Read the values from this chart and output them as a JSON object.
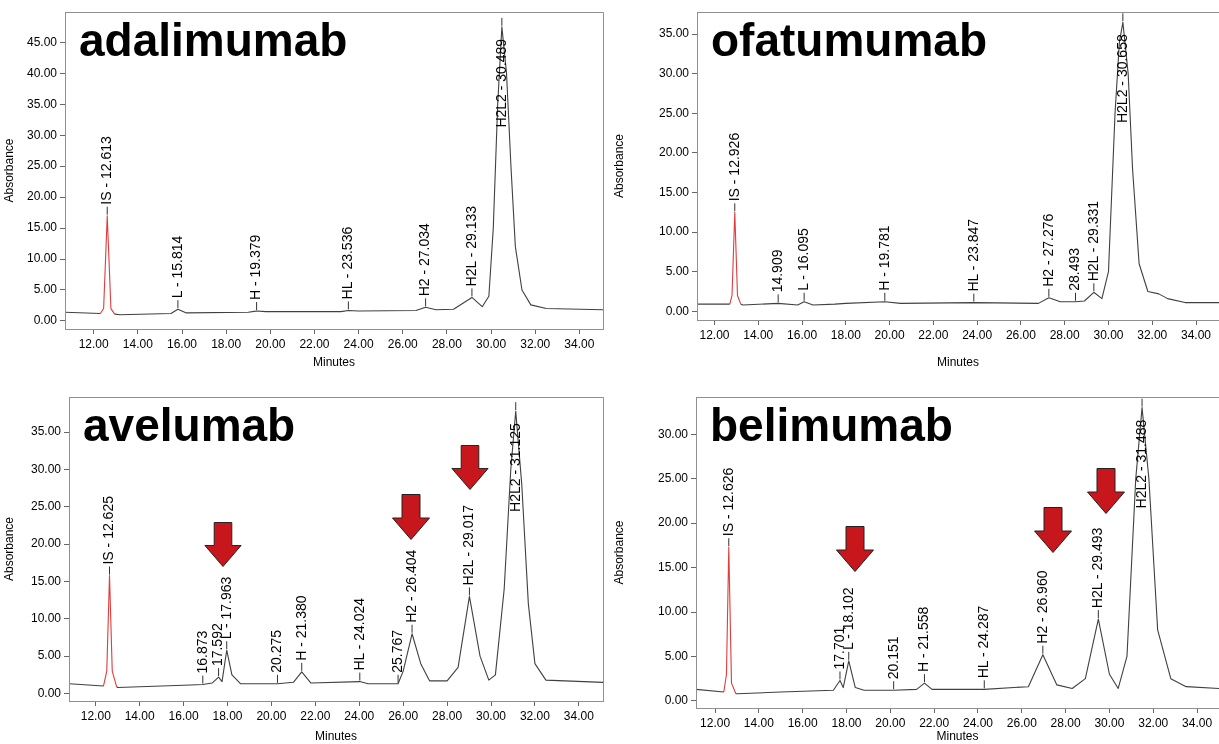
{
  "chart_data": [
    {
      "type": "line",
      "title": "adalimumab",
      "xlabel": "Minutes",
      "ylabel": "Absorbance",
      "legend": false,
      "grid": false,
      "xlim": [
        10.7,
        35.07
      ],
      "ylim": [
        -1.3,
        49.9
      ],
      "xticks": [
        {
          "value": 12,
          "label": "12.00"
        },
        {
          "value": 14,
          "label": "14.00"
        },
        {
          "value": 16,
          "label": "16.00"
        },
        {
          "value": 18,
          "label": "18.00"
        },
        {
          "value": 20,
          "label": "20.00"
        },
        {
          "value": 22,
          "label": "22.00"
        },
        {
          "value": 24,
          "label": "24.00"
        },
        {
          "value": 26,
          "label": "26.00"
        },
        {
          "value": 28,
          "label": "28.00"
        },
        {
          "value": 30,
          "label": "30.00"
        },
        {
          "value": 32,
          "label": "32.00"
        },
        {
          "value": 34,
          "label": "34.00"
        }
      ],
      "yticks": [
        {
          "value": 0,
          "label": "0.00"
        },
        {
          "value": 5,
          "label": "5.00"
        },
        {
          "value": 10,
          "label": "10.00"
        },
        {
          "value": 15,
          "label": "15.00"
        },
        {
          "value": 20,
          "label": "20.00"
        },
        {
          "value": 25,
          "label": "25.00"
        },
        {
          "value": 30,
          "label": "30.00"
        },
        {
          "value": 35,
          "label": "35.00"
        },
        {
          "value": 40,
          "label": "40.00"
        },
        {
          "value": 45,
          "label": "45.00"
        }
      ],
      "series": [
        {
          "type": "line",
          "color": "#404040",
          "x": [
            10.7,
            12.3,
            12.6,
            12.95,
            13.2,
            15.5,
            15.814,
            16.2,
            19.0,
            19.379,
            19.8,
            23.2,
            23.536,
            24.0,
            26.6,
            27.034,
            27.5,
            28.3,
            29.133,
            29.6,
            29.9,
            30.1,
            30.3,
            30.489,
            30.7,
            30.9,
            31.1,
            31.4,
            31.8,
            32.5,
            35.07
          ],
          "values": [
            1.4,
            1.2,
            null,
            1.1,
            1.0,
            1.2,
            1.9,
            1.3,
            1.4,
            1.6,
            1.5,
            1.5,
            1.7,
            1.6,
            1.7,
            2.2,
            1.8,
            1.9,
            3.8,
            2.3,
            4,
            15,
            35,
            47.5,
            40,
            25,
            12,
            5,
            2.6,
            2.0,
            1.8
          ]
        },
        {
          "type": "line",
          "color": "#e03c3c",
          "x": [
            12.3,
            12.45,
            12.613,
            12.78,
            12.95
          ],
          "values": [
            1.2,
            2,
            17,
            2,
            1.1
          ]
        }
      ],
      "annotations": [
        {
          "text": "IS - 12.613",
          "x": 12.613,
          "y": 17
        },
        {
          "text": "L - 15.814",
          "x": 15.814,
          "y": 1.9
        },
        {
          "text": "H - 19.379",
          "x": 19.379,
          "y": 1.6
        },
        {
          "text": "HL - 23.536",
          "x": 23.536,
          "y": 1.7
        },
        {
          "text": "H2 - 27.034",
          "x": 27.034,
          "y": 2.2
        },
        {
          "text": "H2L - 29.133",
          "x": 29.133,
          "y": 3.8
        },
        {
          "text": "H2L2 - 30.489",
          "x": 30.489,
          "y": 47.5
        }
      ]
    },
    {
      "type": "line",
      "title": "ofatumumab",
      "xlabel": "Minutes",
      "ylabel": "Absorbance",
      "legend": false,
      "grid": false,
      "xlim": [
        11.2,
        35.05
      ],
      "ylim": [
        -1.1,
        37.8
      ],
      "xticks": [
        {
          "value": 12,
          "label": "12.00"
        },
        {
          "value": 14,
          "label": "14.00"
        },
        {
          "value": 16,
          "label": "16.00"
        },
        {
          "value": 18,
          "label": "18.00"
        },
        {
          "value": 20,
          "label": "20.00"
        },
        {
          "value": 22,
          "label": "22.00"
        },
        {
          "value": 24,
          "label": "24.00"
        },
        {
          "value": 26,
          "label": "26.00"
        },
        {
          "value": 28,
          "label": "28.00"
        },
        {
          "value": 30,
          "label": "30.00"
        },
        {
          "value": 32,
          "label": "32.00"
        },
        {
          "value": 34,
          "label": "34.00"
        }
      ],
      "yticks": [
        {
          "value": 0,
          "label": "0.00"
        },
        {
          "value": 5,
          "label": "5.00"
        },
        {
          "value": 10,
          "label": "10.00"
        },
        {
          "value": 15,
          "label": "15.00"
        },
        {
          "value": 20,
          "label": "20.00"
        },
        {
          "value": 25,
          "label": "25.00"
        },
        {
          "value": 30,
          "label": "30.00"
        },
        {
          "value": 35,
          "label": "35.00"
        }
      ],
      "series": [
        {
          "type": "line",
          "color": "#404040",
          "x": [
            11.2,
            12.7,
            12.9,
            13.2,
            13.3,
            14.909,
            15.8,
            16.095,
            16.5,
            17.5,
            18.0,
            19.781,
            20.5,
            23.847,
            26.8,
            27.276,
            27.8,
            28.493,
            28.9,
            29.331,
            29.7,
            30.0,
            30.3,
            30.5,
            30.658,
            30.9,
            31.1,
            31.4,
            31.8,
            32.3,
            32.7,
            33.5,
            35.05
          ],
          "values": [
            0.9,
            0.9,
            null,
            0.9,
            0.8,
            1.0,
            0.8,
            1.2,
            0.8,
            0.9,
            1.0,
            1.2,
            1.0,
            1.1,
            1.0,
            1.7,
            1.2,
            1.2,
            1.3,
            2.4,
            1.6,
            5,
            25,
            34,
            36.5,
            30,
            18,
            6,
            2.5,
            2.2,
            1.6,
            1.1,
            1.1
          ]
        },
        {
          "type": "line",
          "color": "#e03c3c",
          "x": [
            12.7,
            12.8,
            12.926,
            13.05,
            13.2
          ],
          "values": [
            0.9,
            2,
            12.5,
            2,
            0.9
          ]
        }
      ],
      "annotations": [
        {
          "text": "IS - 12.926",
          "x": 12.926,
          "y": 12.5
        },
        {
          "text": "14.909",
          "x": 14.909,
          "y": 1.0
        },
        {
          "text": "L - 16.095",
          "x": 16.095,
          "y": 1.2
        },
        {
          "text": "H - 19.781",
          "x": 19.781,
          "y": 1.2
        },
        {
          "text": "HL - 23.847",
          "x": 23.847,
          "y": 1.1
        },
        {
          "text": "H2 - 27.276",
          "x": 27.276,
          "y": 1.7
        },
        {
          "text": "28.493",
          "x": 28.493,
          "y": 1.2
        },
        {
          "text": "H2L - 29.331",
          "x": 29.331,
          "y": 2.4
        },
        {
          "text": "H2L2 - 30.658",
          "x": 30.658,
          "y": 36.5
        }
      ]
    },
    {
      "type": "line",
      "title": "avelumab",
      "xlabel": "Minutes",
      "ylabel": "Absorbance",
      "legend": false,
      "grid": false,
      "xlim": [
        10.78,
        35.1
      ],
      "ylim": [
        -1.0,
        39.7
      ],
      "xticks": [
        {
          "value": 12,
          "label": "12.00"
        },
        {
          "value": 14,
          "label": "14.00"
        },
        {
          "value": 16,
          "label": "16.00"
        },
        {
          "value": 18,
          "label": "18.00"
        },
        {
          "value": 20,
          "label": "20.00"
        },
        {
          "value": 22,
          "label": "22.00"
        },
        {
          "value": 24,
          "label": "24.00"
        },
        {
          "value": 26,
          "label": "26.00"
        },
        {
          "value": 28,
          "label": "28.00"
        },
        {
          "value": 30,
          "label": "30.00"
        },
        {
          "value": 32,
          "label": "32.00"
        },
        {
          "value": 34,
          "label": "34.00"
        }
      ],
      "yticks": [
        {
          "value": 0,
          "label": "0.00"
        },
        {
          "value": 5,
          "label": "5.00"
        },
        {
          "value": 10,
          "label": "10.00"
        },
        {
          "value": 15,
          "label": "15.00"
        },
        {
          "value": 20,
          "label": "20.00"
        },
        {
          "value": 25,
          "label": "25.00"
        },
        {
          "value": 30,
          "label": "30.00"
        },
        {
          "value": 35,
          "label": "35.00"
        }
      ],
      "series": [
        {
          "type": "line",
          "color": "#404040",
          "x": [
            10.78,
            12.35,
            12.6,
            12.95,
            13.0,
            16.0,
            16.873,
            17.3,
            17.592,
            17.75,
            17.963,
            18.2,
            18.6,
            20.275,
            21.0,
            21.38,
            21.8,
            24.024,
            24.4,
            25.767,
            26.0,
            26.404,
            26.8,
            27.2,
            28.0,
            28.5,
            29.017,
            29.5,
            29.9,
            30.2,
            30.6,
            30.9,
            31.125,
            31.4,
            31.7,
            32.0,
            32.5,
            35.1
          ],
          "values": [
            1.3,
            1.0,
            null,
            0.9,
            0.8,
            1.1,
            1.2,
            1.4,
            2.2,
            1.6,
            5.8,
            2.5,
            1.3,
            1.3,
            1.5,
            2.9,
            1.4,
            1.6,
            1.3,
            1.3,
            3,
            8.0,
            4,
            1.7,
            1.7,
            3.5,
            13.0,
            5,
            1.8,
            2.5,
            14,
            30,
            37.8,
            28,
            12,
            4,
            1.8,
            1.5
          ]
        },
        {
          "type": "line",
          "color": "#e03c3c",
          "x": [
            12.35,
            12.5,
            12.625,
            12.75,
            12.95
          ],
          "values": [
            1.0,
            3,
            15.8,
            3,
            0.9
          ]
        }
      ],
      "annotations": [
        {
          "text": "IS - 12.625",
          "x": 12.625,
          "y": 15.8
        },
        {
          "text": "16.873",
          "x": 16.873,
          "y": 1.2
        },
        {
          "text": "17.592",
          "x": 17.592,
          "y": 2.2
        },
        {
          "text": "L - 17.963",
          "x": 17.963,
          "y": 5.8
        },
        {
          "text": "20.275",
          "x": 20.275,
          "y": 1.3
        },
        {
          "text": "H - 21.380",
          "x": 21.38,
          "y": 2.9
        },
        {
          "text": "HL - 24.024",
          "x": 24.024,
          "y": 1.6
        },
        {
          "text": "25.767",
          "x": 25.767,
          "y": 1.3
        },
        {
          "text": "H2 - 26.404",
          "x": 26.404,
          "y": 8.0
        },
        {
          "text": "H2L - 29.017",
          "x": 29.017,
          "y": 13.0
        },
        {
          "text": "H2L2 - 31.125",
          "x": 31.125,
          "y": 37.8
        }
      ]
    },
    {
      "type": "line",
      "title": "belimumab",
      "xlabel": "Minutes",
      "ylabel": "Absorbance",
      "legend": false,
      "grid": false,
      "xlim": [
        11.13,
        35.0
      ],
      "ylim": [
        -0.8,
        34.2
      ],
      "xticks": [
        {
          "value": 12,
          "label": "12.00"
        },
        {
          "value": 14,
          "label": "14.00"
        },
        {
          "value": 16,
          "label": "16.00"
        },
        {
          "value": 18,
          "label": "18.00"
        },
        {
          "value": 20,
          "label": "20.00"
        },
        {
          "value": 22,
          "label": "22.00"
        },
        {
          "value": 24,
          "label": "24.00"
        },
        {
          "value": 26,
          "label": "26.00"
        },
        {
          "value": 28,
          "label": "28.00"
        },
        {
          "value": 30,
          "label": "30.00"
        },
        {
          "value": 32,
          "label": "32.00"
        },
        {
          "value": 34,
          "label": "34.00"
        }
      ],
      "yticks": [
        {
          "value": 0,
          "label": "0.00"
        },
        {
          "value": 5,
          "label": "5.00"
        },
        {
          "value": 10,
          "label": "10.00"
        },
        {
          "value": 15,
          "label": "15.00"
        },
        {
          "value": 20,
          "label": "20.00"
        },
        {
          "value": 25,
          "label": "25.00"
        },
        {
          "value": 30,
          "label": "30.00"
        }
      ],
      "series": [
        {
          "type": "line",
          "color": "#404040",
          "x": [
            11.13,
            12.4,
            12.6,
            12.95,
            13.0,
            15.0,
            17.4,
            17.701,
            17.85,
            18.102,
            18.4,
            18.8,
            20.151,
            21.2,
            21.558,
            21.9,
            24.287,
            26.3,
            26.96,
            27.6,
            28.3,
            28.9,
            29.493,
            30.0,
            30.4,
            30.8,
            31.2,
            31.488,
            31.8,
            32.2,
            32.8,
            33.5,
            35.0
          ],
          "values": [
            1.3,
            1.0,
            null,
            0.8,
            0.8,
            1.0,
            1.2,
            2.3,
            1.5,
            4.5,
            1.5,
            1.2,
            1.2,
            1.3,
            2.0,
            1.3,
            1.3,
            1.6,
            5.2,
            1.8,
            1.4,
            2.5,
            9.2,
            3,
            1.4,
            5,
            25,
            33,
            25,
            8,
            2.5,
            1.6,
            1.4
          ]
        },
        {
          "type": "line",
          "color": "#e03c3c",
          "x": [
            12.4,
            12.52,
            12.626,
            12.75,
            12.95
          ],
          "values": [
            1.0,
            3,
            17.3,
            2,
            0.8
          ]
        }
      ],
      "annotations": [
        {
          "text": "IS - 12.626",
          "x": 12.626,
          "y": 17.3
        },
        {
          "text": "17.701",
          "x": 17.701,
          "y": 2.3
        },
        {
          "text": "L - 18.102",
          "x": 18.102,
          "y": 4.5
        },
        {
          "text": "20.151",
          "x": 20.151,
          "y": 1.2
        },
        {
          "text": "H - 21.558",
          "x": 21.558,
          "y": 2.0
        },
        {
          "text": "HL - 24.287",
          "x": 24.287,
          "y": 1.3
        },
        {
          "text": "H2 - 26.960",
          "x": 26.96,
          "y": 5.2
        },
        {
          "text": "H2L - 29.493",
          "x": 29.493,
          "y": 9.2
        },
        {
          "text": "H2L2 - 31.488",
          "x": 31.488,
          "y": 33
        }
      ]
    }
  ]
}
